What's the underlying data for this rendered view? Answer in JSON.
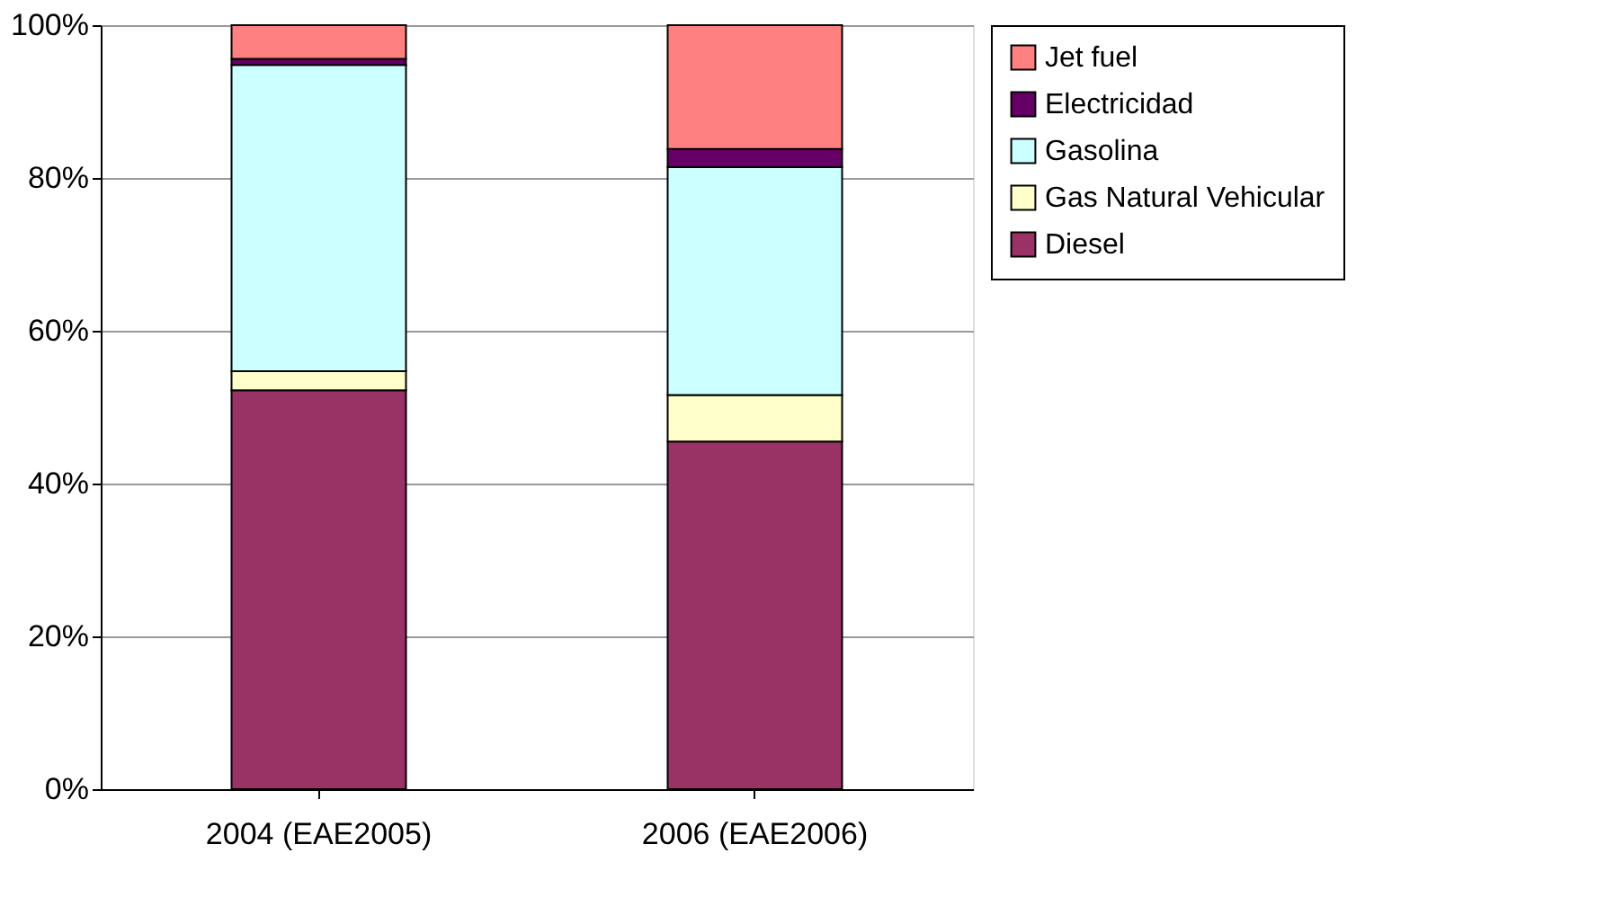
{
  "chart_data": {
    "type": "bar",
    "stacked": true,
    "categories": [
      "2004 (EAE2005)",
      "2006 (EAE2006)"
    ],
    "series": [
      {
        "name": "Diesel",
        "color": "#993366",
        "values": [
          52.2,
          45.5
        ]
      },
      {
        "name": "Gas Natural Vehicular",
        "color": "#ffffcc",
        "values": [
          2.5,
          6.1
        ]
      },
      {
        "name": "Gasolina",
        "color": "#ccffff",
        "values": [
          40.1,
          29.8
        ]
      },
      {
        "name": "Electricidad",
        "color": "#660066",
        "values": [
          0.8,
          2.4
        ]
      },
      {
        "name": "Jet fuel",
        "color": "#ff8080",
        "values": [
          4.4,
          16.2
        ]
      }
    ],
    "ylim": [
      0,
      100
    ],
    "yticks": [
      {
        "value": 0,
        "label": "0%"
      },
      {
        "value": 20,
        "label": "20%"
      },
      {
        "value": 40,
        "label": "40%"
      },
      {
        "value": 60,
        "label": "60%"
      },
      {
        "value": 80,
        "label": "80%"
      },
      {
        "value": 100,
        "label": "100%"
      }
    ],
    "grid": "y",
    "legend": "right"
  }
}
